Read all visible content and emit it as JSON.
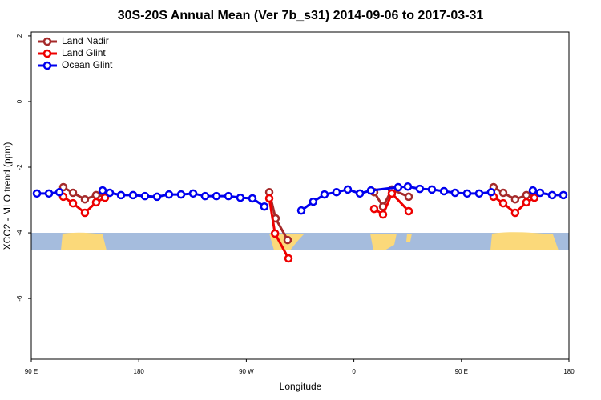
{
  "chart_data": {
    "type": "line",
    "title": "30S-20S Annual Mean (Ver 7b_s31)   2014-09-06 to 2017-03-31",
    "x_label": "Longitude",
    "y_label": "XCO2 - MLO trend (ppm)",
    "xlim": [
      90,
      540
    ],
    "xticks": [
      {
        "value": 90,
        "label": "90 E"
      },
      180,
      {
        "value": 270,
        "label": "90 W"
      },
      {
        "value": 360,
        "label": "0"
      },
      {
        "value": 450,
        "label": "90 E"
      },
      {
        "value": 540,
        "label": "180"
      }
    ],
    "ylim": [
      -7.85,
      2.12
    ],
    "yticks": [
      2,
      0,
      -2,
      -4,
      -6
    ],
    "legend": "top-left",
    "series": [
      {
        "name": "Land Nadir",
        "color": "#a52a2a",
        "x": [
          116.8,
          124.9,
          134.9,
          144.3,
          151.7,
          220,
          289.2,
          294.5,
          304.6,
          340,
          377,
          384.4,
          391.8,
          405.9,
          440,
          476.9,
          485,
          495,
          504.4,
          511.1
        ],
        "values": [
          -2.61,
          -2.78,
          -2.98,
          -2.85,
          -2.88,
          null,
          -2.76,
          -3.56,
          -4.22,
          null,
          -2.76,
          -3.2,
          -2.68,
          -2.9,
          null,
          -2.61,
          -2.78,
          -2.98,
          -2.85,
          -2.83
        ]
      },
      {
        "name": "Land Glint",
        "color": "#ee0000",
        "x": [
          116.8,
          124.9,
          134.9,
          144.3,
          151.7,
          220,
          289.2,
          294,
          305.3,
          340,
          377,
          384.4,
          391.8,
          405.9,
          440,
          476.9,
          485,
          495,
          504.4,
          511.1
        ],
        "values": [
          -2.9,
          -3.1,
          -3.39,
          -3.07,
          -2.93,
          null,
          -2.95,
          -4.02,
          -4.78,
          null,
          -3.27,
          -3.44,
          -2.8,
          -3.34,
          null,
          -2.9,
          -3.1,
          -3.39,
          -3.07,
          -2.93
        ]
      },
      {
        "name": "Ocean Glint",
        "color": "#0000ee",
        "x": [
          94.7,
          104.8,
          113.5,
          130,
          149.7,
          155.7,
          165.1,
          175.2,
          185.2,
          195.3,
          205.3,
          215.4,
          225.5,
          235.5,
          244.9,
          255,
          265,
          275.1,
          285.1,
          300,
          316,
          326,
          335.4,
          345.5,
          354.9,
          365,
          374.3,
          397.1,
          405.2,
          415.2,
          425.3,
          435.4,
          444.7,
          454.8,
          464.9,
          474.9,
          490,
          509.8,
          515.8,
          525.9,
          535.3
        ],
        "values": [
          -2.8,
          -2.8,
          -2.76,
          null,
          -2.71,
          -2.78,
          -2.85,
          -2.85,
          -2.88,
          -2.9,
          -2.83,
          -2.83,
          -2.8,
          -2.88,
          -2.88,
          -2.88,
          -2.93,
          -2.95,
          -3.2,
          null,
          -3.32,
          -3.05,
          -2.83,
          -2.76,
          -2.68,
          -2.8,
          -2.71,
          -2.61,
          -2.59,
          -2.66,
          -2.68,
          -2.73,
          -2.78,
          -2.8,
          -2.8,
          -2.76,
          null,
          -2.71,
          -2.78,
          -2.85,
          -2.85
        ]
      }
    ]
  }
}
